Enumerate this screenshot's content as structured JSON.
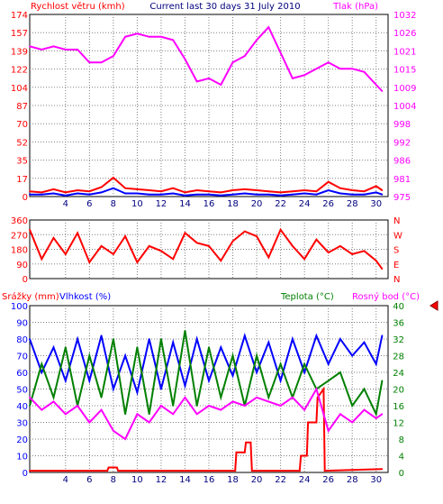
{
  "chart_data": [
    {
      "type": "line",
      "title": "Current last 30 days 31 July 2010",
      "ylabel": "Rychlost větru (kmh)",
      "ylabel_right": "Tlak (hPa)",
      "ylim": [
        0,
        174
      ],
      "ylim_right": [
        975,
        1032
      ],
      "yticks": [
        "0",
        "17",
        "35",
        "52",
        "70",
        "87",
        "104",
        "122",
        "139",
        "157",
        "174"
      ],
      "yticks_right": [
        "975",
        "981",
        "986",
        "992",
        "998",
        "1004",
        "1009",
        "1015",
        "1021",
        "1026",
        "1032"
      ],
      "xticks": [
        "4",
        "6",
        "8",
        "10",
        "12",
        "14",
        "16",
        "18",
        "20",
        "22",
        "24",
        "26",
        "28",
        "30"
      ],
      "xlim": [
        1,
        31
      ],
      "colors": {
        "wind": "#ff0000",
        "pressure": "#ff00ff",
        "wind_avg": "#0000ff",
        "grid": "#808080"
      },
      "grid": true,
      "series": [
        {
          "axis": "right",
          "color": "#ff00ff",
          "x": [
            1,
            2,
            3,
            4,
            5,
            6,
            7,
            8,
            9,
            10,
            11,
            12,
            13,
            14,
            15,
            16,
            17,
            18,
            19,
            20,
            21,
            22,
            23,
            24,
            25,
            26,
            27,
            28,
            29,
            30,
            30.5
          ],
          "values": [
            1022,
            1021,
            1022,
            1021,
            1021,
            1017,
            1017,
            1019,
            1025,
            1026,
            1025,
            1025,
            1024,
            1018,
            1011,
            1012,
            1010,
            1017,
            1019,
            1024,
            1028,
            1020,
            1012,
            1013,
            1015,
            1017,
            1015,
            1015,
            1014,
            1010,
            1008
          ]
        },
        {
          "axis": "left",
          "color": "#ff0000",
          "x": [
            1,
            2,
            3,
            4,
            5,
            6,
            7,
            8,
            9,
            10,
            11,
            12,
            13,
            14,
            15,
            16,
            17,
            18,
            19,
            20,
            21,
            22,
            23,
            24,
            25,
            26,
            27,
            28,
            29,
            30,
            30.5
          ],
          "values": [
            5,
            4,
            7,
            4,
            6,
            5,
            9,
            18,
            8,
            7,
            6,
            5,
            8,
            4,
            6,
            5,
            4,
            6,
            7,
            6,
            5,
            4,
            5,
            6,
            5,
            14,
            8,
            6,
            5,
            10,
            6
          ]
        },
        {
          "axis": "left",
          "color": "#0000ff",
          "x": [
            1,
            2,
            3,
            4,
            5,
            6,
            7,
            8,
            9,
            10,
            11,
            12,
            13,
            14,
            15,
            16,
            17,
            18,
            19,
            20,
            21,
            22,
            23,
            24,
            25,
            26,
            27,
            28,
            29,
            30,
            30.5
          ],
          "values": [
            2,
            2,
            3,
            1,
            3,
            2,
            4,
            8,
            3,
            3,
            2,
            2,
            3,
            1,
            2,
            2,
            1,
            2,
            3,
            2,
            2,
            1,
            2,
            3,
            2,
            6,
            3,
            2,
            2,
            4,
            2
          ]
        }
      ]
    },
    {
      "type": "line",
      "ylim": [
        0,
        360
      ],
      "yticks": [
        "0",
        "90",
        "180",
        "270",
        "360"
      ],
      "yticks_right": [
        "N",
        "E",
        "S",
        "W",
        "N"
      ],
      "xlim": [
        1,
        31
      ],
      "series": [
        {
          "color": "#ff0000",
          "x": [
            1,
            2,
            3,
            4,
            5,
            6,
            7,
            8,
            9,
            10,
            11,
            12,
            13,
            14,
            15,
            16,
            17,
            18,
            19,
            20,
            21,
            22,
            23,
            24,
            25,
            26,
            27,
            28,
            29,
            30,
            30.5
          ],
          "values": [
            300,
            120,
            250,
            150,
            280,
            100,
            200,
            150,
            260,
            100,
            200,
            170,
            120,
            280,
            220,
            200,
            110,
            230,
            290,
            260,
            130,
            300,
            200,
            120,
            240,
            160,
            200,
            150,
            170,
            110,
            60
          ]
        }
      ]
    },
    {
      "type": "line",
      "ylabel": "Srážky (mm)",
      "ylabel2": "Vlhkost (%)",
      "ylabel_right": "Teplota (°C)",
      "ylabel_right2": "Rosný bod (°C)",
      "ylim": [
        0,
        100
      ],
      "ylim_right": [
        0,
        40
      ],
      "yticks": [
        "0",
        "10",
        "20",
        "30",
        "40",
        "50",
        "60",
        "70",
        "80",
        "90",
        "100"
      ],
      "yticks_right": [
        "0",
        "4",
        "8",
        "12",
        "16",
        "20",
        "24",
        "28",
        "32",
        "36",
        "40"
      ],
      "xticks": [
        "4",
        "6",
        "8",
        "10",
        "12",
        "14",
        "16",
        "18",
        "20",
        "22",
        "24",
        "26",
        "28",
        "30"
      ],
      "xlim": [
        1,
        31
      ],
      "series": [
        {
          "axis": "left",
          "color": "#ff0000",
          "x": [
            1,
            7.5,
            7.6,
            8.3,
            8.4,
            18.2,
            18.3,
            19.0,
            19.1,
            19.5,
            19.6,
            23.6,
            23.7,
            24.2,
            24.3,
            25.0,
            25.1,
            25.6,
            25.7,
            30.5
          ],
          "values": [
            1,
            1,
            3,
            3,
            1,
            1,
            12,
            12,
            18,
            18,
            1,
            1,
            10,
            10,
            30,
            30,
            45,
            50,
            1,
            2
          ]
        },
        {
          "axis": "left",
          "color": "#0000ff",
          "x": [
            1,
            2,
            3,
            4,
            5,
            6,
            7,
            8,
            9,
            10,
            11,
            12,
            13,
            14,
            15,
            16,
            17,
            18,
            19,
            20,
            21,
            22,
            23,
            24,
            25,
            26,
            27,
            28,
            29,
            30,
            30.5
          ],
          "values": [
            80,
            60,
            75,
            55,
            80,
            55,
            82,
            50,
            70,
            48,
            80,
            50,
            78,
            52,
            80,
            55,
            75,
            58,
            82,
            60,
            78,
            55,
            80,
            60,
            82,
            65,
            80,
            70,
            78,
            65,
            82
          ]
        },
        {
          "axis": "right",
          "color": "#008000",
          "x": [
            1,
            2,
            3,
            4,
            5,
            6,
            7,
            8,
            9,
            10,
            11,
            12,
            13,
            14,
            15,
            16,
            17,
            18,
            19,
            20,
            21,
            22,
            23,
            24,
            25,
            26,
            27,
            28,
            29,
            30,
            30.5
          ],
          "values": [
            16,
            26,
            18,
            30,
            16,
            28,
            18,
            32,
            14,
            30,
            14,
            32,
            16,
            34,
            16,
            30,
            18,
            28,
            16,
            28,
            18,
            26,
            18,
            26,
            20,
            22,
            24,
            16,
            20,
            14,
            22
          ]
        },
        {
          "axis": "right",
          "color": "#ff00ff",
          "x": [
            1,
            2,
            3,
            4,
            5,
            6,
            7,
            8,
            9,
            10,
            11,
            12,
            13,
            14,
            15,
            16,
            17,
            18,
            19,
            20,
            21,
            22,
            23,
            24,
            25,
            26,
            27,
            28,
            29,
            30,
            30.5
          ],
          "values": [
            18,
            15,
            17,
            14,
            16,
            12,
            15,
            10,
            8,
            14,
            12,
            16,
            14,
            18,
            14,
            16,
            15,
            17,
            16,
            18,
            17,
            16,
            18,
            15,
            20,
            10,
            14,
            12,
            15,
            13,
            14
          ]
        }
      ]
    }
  ]
}
